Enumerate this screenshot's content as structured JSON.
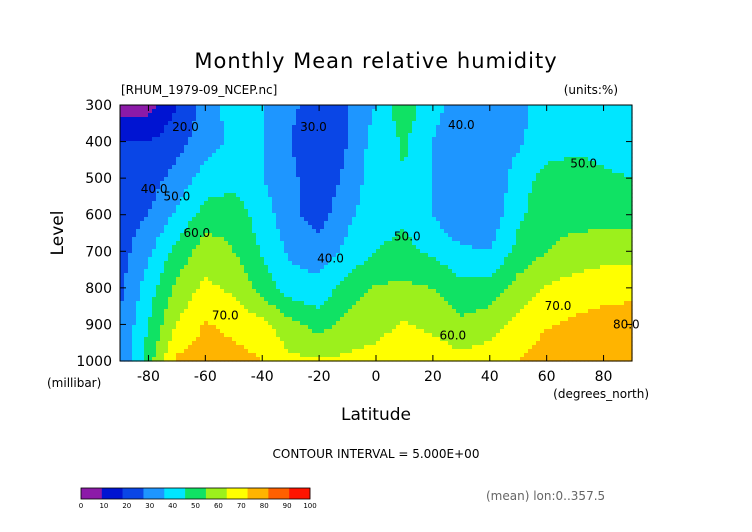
{
  "chart_data": {
    "type": "heatmap",
    "title": "Monthly Mean relative humidity",
    "file_label": "[RHUM_1979-09_NCEP.nc]",
    "units_label": "(units:%)",
    "xlabel": "Latitude",
    "ylabel": "Level",
    "x_units": "(degrees_north)",
    "y_units": "(millibar)",
    "xlim": [
      -90,
      90
    ],
    "ylim": [
      300,
      1000
    ],
    "y_inverted": true,
    "x_ticks": [
      -80,
      -60,
      -40,
      -20,
      0,
      20,
      40,
      60,
      80
    ],
    "x_tick_labels": [
      "-80",
      "-60",
      "-40",
      "-20",
      "0",
      "20",
      "40",
      "60",
      "80"
    ],
    "y_ticks": [
      300,
      400,
      500,
      600,
      700,
      800,
      900,
      1000
    ],
    "y_tick_labels": [
      "300",
      "400",
      "500",
      "600",
      "700",
      "800",
      "900",
      "1000"
    ],
    "contour_interval_text": "CONTOUR INTERVAL = 5.000E+00",
    "footer_note": "(mean) lon:0..357.5",
    "colorbar": {
      "ticks": [
        0,
        10,
        20,
        30,
        40,
        50,
        60,
        70,
        80,
        90,
        100
      ],
      "tick_labels": [
        "0",
        "10",
        "20",
        "30",
        "40",
        "50",
        "60",
        "70",
        "80",
        "90",
        "100"
      ],
      "colors": [
        "#8c1aa8",
        "#0014d2",
        "#0a46e6",
        "#1e96ff",
        "#00e6ff",
        "#10e264",
        "#9cf01c",
        "#ffff00",
        "#ffb400",
        "#ff6000",
        "#ff1400"
      ]
    },
    "contour_labels": [
      {
        "text": "20.0",
        "lat": -67,
        "lev": 360
      },
      {
        "text": "30.0",
        "lat": -22,
        "lev": 360
      },
      {
        "text": "40.0",
        "lat": 30,
        "lev": 355
      },
      {
        "text": "50.0",
        "lat": 73,
        "lev": 460
      },
      {
        "text": "40.0",
        "lat": -78,
        "lev": 530
      },
      {
        "text": "50.0",
        "lat": -70,
        "lev": 550
      },
      {
        "text": "60.0",
        "lat": -63,
        "lev": 650
      },
      {
        "text": "40.0",
        "lat": -16,
        "lev": 720
      },
      {
        "text": "50.0",
        "lat": 11,
        "lev": 660
      },
      {
        "text": "70.0",
        "lat": -53,
        "lev": 875
      },
      {
        "text": "70.0",
        "lat": 64,
        "lev": 850
      },
      {
        "text": "60.0",
        "lat": 27,
        "lev": 930
      },
      {
        "text": "80.0",
        "lat": 88,
        "lev": 900
      }
    ],
    "grid_lat": [
      -90,
      -80,
      -70,
      -60,
      -50,
      -40,
      -30,
      -20,
      -10,
      0,
      10,
      20,
      30,
      40,
      50,
      60,
      70,
      80,
      90
    ],
    "grid_lev": [
      300,
      400,
      500,
      600,
      700,
      800,
      900,
      1000
    ],
    "values": [
      [
        5,
        6,
        20,
        34,
        45,
        40,
        33,
        22,
        30,
        40,
        57,
        42,
        38,
        33,
        38,
        44,
        44,
        46,
        44
      ],
      [
        20,
        20,
        26,
        36,
        42,
        40,
        30,
        20,
        30,
        45,
        51,
        40,
        34,
        32,
        38,
        46,
        48,
        48,
        46
      ],
      [
        22,
        25,
        34,
        44,
        46,
        40,
        33,
        22,
        33,
        46,
        50,
        40,
        32,
        30,
        46,
        53,
        53,
        51,
        50
      ],
      [
        25,
        30,
        42,
        54,
        56,
        45,
        33,
        25,
        38,
        46,
        48,
        40,
        30,
        33,
        48,
        56,
        56,
        56,
        57
      ],
      [
        25,
        38,
        53,
        66,
        60,
        49,
        38,
        35,
        42,
        50,
        53,
        48,
        42,
        40,
        53,
        60,
        64,
        66,
        65
      ],
      [
        28,
        45,
        63,
        72,
        68,
        56,
        44,
        43,
        55,
        61,
        62,
        60,
        53,
        55,
        64,
        71,
        74,
        76,
        77
      ],
      [
        30,
        50,
        70,
        81,
        77,
        73,
        63,
        56,
        63,
        66,
        71,
        67,
        62,
        65,
        73,
        79,
        82,
        84,
        85
      ],
      [
        30,
        56,
        82,
        85,
        84,
        80,
        72,
        71,
        72,
        74,
        80,
        77,
        73,
        76,
        80,
        86,
        88,
        90,
        88
      ]
    ]
  }
}
